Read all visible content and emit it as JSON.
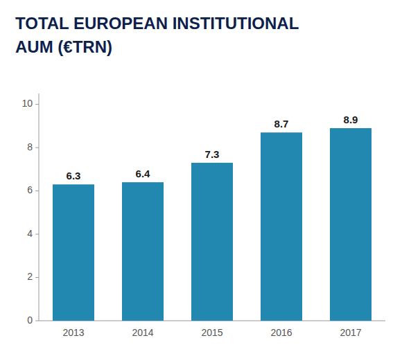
{
  "chart_data": {
    "type": "bar",
    "title": [
      "TOTAL EUROPEAN INSTITUTIONAL",
      "AUM (€TRN)"
    ],
    "categories": [
      "2013",
      "2014",
      "2015",
      "2016",
      "2017"
    ],
    "values": [
      6.3,
      6.4,
      7.3,
      8.7,
      8.9
    ],
    "color": "#2288b0",
    "ylim": [
      0,
      10.5
    ],
    "yticks": [
      0,
      2,
      4,
      6,
      8,
      10
    ],
    "grid": false,
    "data_labels": true
  }
}
